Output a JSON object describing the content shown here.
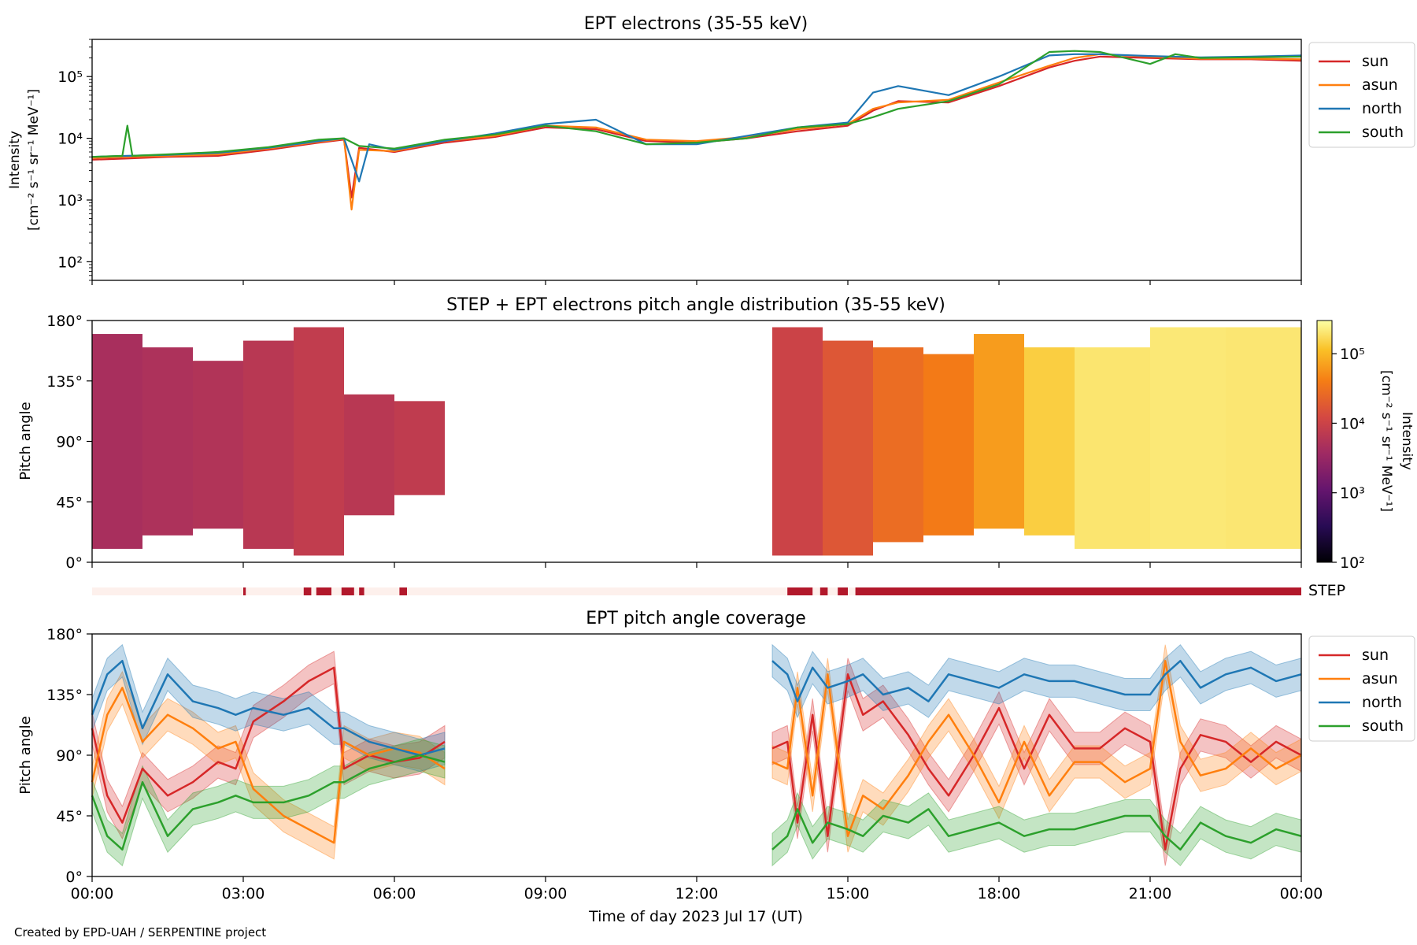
{
  "footer": "Created by EPD-UAH / SERPENTINE project",
  "xlabel": "Time of day 2023 Jul 17 (UT)",
  "time_ticks": [
    "00:00",
    "03:00",
    "06:00",
    "09:00",
    "12:00",
    "15:00",
    "18:00",
    "21:00",
    "00:00"
  ],
  "pitch_ticks": [
    "0°",
    "45°",
    "90°",
    "135°",
    "180°"
  ],
  "colors": {
    "sun": "#d62728",
    "asun": "#ff7f0e",
    "north": "#1f77b4",
    "south": "#2ca02c",
    "step": "#b2182b",
    "step_off": "#fdf0ec"
  },
  "chart_data": [
    {
      "type": "line",
      "title": "EPT electrons (35-55 keV)",
      "ylabel": [
        "Intensity",
        "[cm⁻² s⁻¹ sr⁻¹ MeV⁻¹]"
      ],
      "yscale": "log",
      "ylim": [
        50,
        400000
      ],
      "yticks": [
        {
          "value": 100,
          "label": "10²"
        },
        {
          "value": 1000,
          "label": "10³"
        },
        {
          "value": 10000,
          "label": "10⁴"
        },
        {
          "value": 100000,
          "label": "10⁵"
        }
      ],
      "xlim": [
        0,
        24
      ],
      "legend": "outside-right",
      "series": [
        {
          "name": "sun",
          "x": [
            0,
            0.7,
            1.5,
            2.5,
            3.5,
            4.5,
            5.0,
            5.15,
            5.3,
            6.0,
            7.0,
            8.0,
            9.0,
            10.0,
            11.0,
            12.0,
            13.0,
            14.0,
            15.0,
            15.5,
            16.0,
            17.0,
            18.0,
            19.0,
            19.5,
            20.0,
            21.0,
            22.0,
            23.0,
            24.0
          ],
          "y": [
            4500,
            4700,
            5000,
            5200,
            6500,
            8500,
            9500,
            1100,
            7000,
            6000,
            8500,
            10500,
            15000,
            14000,
            9000,
            8500,
            10000,
            13000,
            16000,
            28000,
            40000,
            38000,
            70000,
            140000,
            180000,
            210000,
            200000,
            190000,
            190000,
            180000
          ]
        },
        {
          "name": "asun",
          "x": [
            0,
            0.7,
            1.5,
            2.5,
            3.5,
            4.5,
            5.0,
            5.15,
            5.3,
            6.0,
            7.0,
            8.0,
            9.0,
            10.0,
            11.0,
            12.0,
            13.0,
            14.0,
            15.0,
            15.5,
            16.0,
            17.0,
            18.0,
            19.0,
            19.5,
            20.0,
            21.0,
            22.0,
            23.0,
            24.0
          ],
          "y": [
            4800,
            5000,
            5200,
            5500,
            6800,
            8800,
            9800,
            700,
            6500,
            6200,
            9000,
            11000,
            16000,
            15000,
            9500,
            9000,
            10500,
            14000,
            17000,
            30000,
            38000,
            42000,
            80000,
            150000,
            200000,
            230000,
            210000,
            195000,
            195000,
            190000
          ]
        },
        {
          "name": "north",
          "x": [
            0,
            0.7,
            1.5,
            2.5,
            3.5,
            4.5,
            5.0,
            5.3,
            5.5,
            6.0,
            7.0,
            8.0,
            9.0,
            10.0,
            11.0,
            12.0,
            13.0,
            14.0,
            15.0,
            15.5,
            16.0,
            17.0,
            18.0,
            19.0,
            19.5,
            20.0,
            21.0,
            22.0,
            23.0,
            24.0
          ],
          "y": [
            5000,
            5200,
            5400,
            5800,
            7000,
            9000,
            10000,
            2000,
            8000,
            6500,
            9000,
            12000,
            17000,
            20000,
            8000,
            8000,
            11000,
            15000,
            18000,
            55000,
            70000,
            50000,
            100000,
            220000,
            230000,
            230000,
            215000,
            205000,
            210000,
            220000
          ]
        },
        {
          "name": "south",
          "x": [
            0,
            0.6,
            0.7,
            0.8,
            1.5,
            2.5,
            3.5,
            4.5,
            5.0,
            5.3,
            6.0,
            7.0,
            8.0,
            9.0,
            10.0,
            11.0,
            12.0,
            13.0,
            14.0,
            15.0,
            15.5,
            16.0,
            17.0,
            18.0,
            19.0,
            19.5,
            20.0,
            21.0,
            21.5,
            22.0,
            23.0,
            24.0
          ],
          "y": [
            5000,
            5200,
            16000,
            5200,
            5500,
            6000,
            7200,
            9500,
            10000,
            7500,
            6800,
            9500,
            11500,
            16000,
            13000,
            8000,
            8500,
            10000,
            15000,
            17000,
            22000,
            30000,
            40000,
            75000,
            250000,
            260000,
            250000,
            160000,
            230000,
            200000,
            205000,
            210000
          ]
        }
      ]
    },
    {
      "type": "heatmap",
      "title": "STEP + EPT electrons pitch angle distribution (35-55 keV)",
      "ylabel": "Pitch angle",
      "ylim": [
        0,
        180
      ],
      "xlim": [
        0,
        24
      ],
      "colorbar": {
        "label": "Intensity",
        "units": "[cm⁻² s⁻¹ sr⁻¹ MeV⁻¹]",
        "scale": "log",
        "range": [
          100,
          300000
        ],
        "ticks": [
          {
            "value": 100,
            "label": "10²"
          },
          {
            "value": 1000,
            "label": "10³"
          },
          {
            "value": 10000,
            "label": "10⁴"
          },
          {
            "value": 100000,
            "label": "10⁵"
          }
        ],
        "colormap": "inferno"
      },
      "blocks": [
        {
          "t": [
            0.0,
            1.0
          ],
          "pa": [
            10,
            170
          ],
          "intensity": 4500
        },
        {
          "t": [
            1.0,
            2.0
          ],
          "pa": [
            20,
            160
          ],
          "intensity": 5000
        },
        {
          "t": [
            2.0,
            3.0
          ],
          "pa": [
            25,
            150
          ],
          "intensity": 5500
        },
        {
          "t": [
            3.0,
            4.0
          ],
          "pa": [
            10,
            165
          ],
          "intensity": 6500
        },
        {
          "t": [
            4.0,
            5.0
          ],
          "pa": [
            5,
            175
          ],
          "intensity": 8000
        },
        {
          "t": [
            5.0,
            6.0
          ],
          "pa": [
            35,
            125
          ],
          "intensity": 6500
        },
        {
          "t": [
            6.0,
            7.0
          ],
          "pa": [
            50,
            120
          ],
          "intensity": 7500
        },
        {
          "t": [
            13.5,
            14.5
          ],
          "pa": [
            5,
            175
          ],
          "intensity": 10000
        },
        {
          "t": [
            14.5,
            15.5
          ],
          "pa": [
            5,
            165
          ],
          "intensity": 17000
        },
        {
          "t": [
            15.5,
            16.5
          ],
          "pa": [
            15,
            160
          ],
          "intensity": 28000
        },
        {
          "t": [
            16.5,
            17.5
          ],
          "pa": [
            20,
            155
          ],
          "intensity": 38000
        },
        {
          "t": [
            17.5,
            18.5
          ],
          "pa": [
            25,
            170
          ],
          "intensity": 65000
        },
        {
          "t": [
            18.5,
            19.5
          ],
          "pa": [
            20,
            160
          ],
          "intensity": 140000
        },
        {
          "t": [
            19.5,
            21.0
          ],
          "pa": [
            10,
            160
          ],
          "intensity": 200000
        },
        {
          "t": [
            21.0,
            22.5
          ],
          "pa": [
            10,
            175
          ],
          "intensity": 210000
        },
        {
          "t": [
            22.5,
            24.0
          ],
          "pa": [
            10,
            175
          ],
          "intensity": 205000
        }
      ]
    },
    {
      "type": "bar",
      "label": "STEP",
      "xlim": [
        0,
        24
      ],
      "active_intervals": [
        [
          3.0,
          3.05
        ],
        [
          4.2,
          4.35
        ],
        [
          4.45,
          4.75
        ],
        [
          4.95,
          5.2
        ],
        [
          5.3,
          5.4
        ],
        [
          6.1,
          6.25
        ],
        [
          13.8,
          14.3
        ],
        [
          14.45,
          14.6
        ],
        [
          14.8,
          15.0
        ],
        [
          15.15,
          24.0
        ]
      ]
    },
    {
      "type": "line",
      "title": "EPT pitch angle coverage",
      "ylabel": "Pitch angle",
      "ylim": [
        0,
        180
      ],
      "xlim": [
        0,
        24
      ],
      "legend": "outside-right",
      "band_halfwidth": 12,
      "series": [
        {
          "name": "sun",
          "segments": [
            {
              "x": [
                0,
                0.3,
                0.6,
                1.0,
                1.5,
                2.0,
                2.5,
                2.85,
                3.2,
                3.8,
                4.3,
                4.8,
                5.0,
                5.5,
                6.0,
                6.5,
                7.0
              ],
              "y": [
                110,
                60,
                40,
                80,
                60,
                70,
                85,
                80,
                115,
                130,
                145,
                155,
                80,
                90,
                85,
                88,
                100
              ]
            },
            {
              "x": [
                13.5,
                13.8,
                14.0,
                14.3,
                14.6,
                15.0,
                15.3,
                15.7,
                16.2,
                16.6,
                17.0,
                17.5,
                18.0,
                18.5,
                19.0,
                19.5,
                20.0,
                20.5,
                21.0,
                21.3,
                21.6,
                22.0,
                22.5,
                23.0,
                23.5,
                24.0
              ],
              "y": [
                95,
                100,
                40,
                120,
                30,
                150,
                120,
                130,
                105,
                80,
                60,
                90,
                125,
                80,
                120,
                95,
                95,
                110,
                100,
                20,
                80,
                105,
                100,
                85,
                100,
                90
              ]
            }
          ]
        },
        {
          "name": "asun",
          "segments": [
            {
              "x": [
                0,
                0.3,
                0.6,
                1.0,
                1.5,
                2.0,
                2.5,
                2.85,
                3.2,
                3.8,
                4.3,
                4.8,
                5.0,
                5.5,
                6.0,
                6.5,
                7.0
              ],
              "y": [
                70,
                120,
                140,
                100,
                120,
                110,
                95,
                100,
                65,
                45,
                35,
                25,
                100,
                90,
                95,
                92,
                80
              ]
            },
            {
              "x": [
                13.5,
                13.8,
                14.0,
                14.3,
                14.6,
                15.0,
                15.3,
                15.7,
                16.2,
                16.6,
                17.0,
                17.5,
                18.0,
                18.5,
                19.0,
                19.5,
                20.0,
                20.5,
                21.0,
                21.3,
                21.6,
                22.0,
                22.5,
                23.0,
                23.5,
                24.0
              ],
              "y": [
                85,
                80,
                140,
                60,
                150,
                30,
                60,
                50,
                75,
                100,
                120,
                90,
                55,
                100,
                60,
                85,
                85,
                70,
                80,
                160,
                100,
                75,
                80,
                95,
                80,
                90
              ]
            }
          ]
        },
        {
          "name": "north",
          "segments": [
            {
              "x": [
                0,
                0.3,
                0.6,
                1.0,
                1.5,
                2.0,
                2.5,
                2.85,
                3.2,
                3.8,
                4.3,
                4.8,
                5.0,
                5.5,
                6.0,
                6.5,
                7.0
              ],
              "y": [
                120,
                150,
                160,
                110,
                150,
                130,
                125,
                120,
                125,
                120,
                125,
                110,
                110,
                100,
                95,
                90,
                95
              ]
            },
            {
              "x": [
                13.5,
                13.8,
                14.0,
                14.3,
                14.6,
                15.0,
                15.3,
                15.7,
                16.2,
                16.6,
                17.0,
                17.5,
                18.0,
                18.5,
                19.0,
                19.5,
                20.0,
                20.5,
                21.0,
                21.3,
                21.6,
                22.0,
                22.5,
                23.0,
                23.5,
                24.0
              ],
              "y": [
                160,
                150,
                130,
                155,
                140,
                145,
                150,
                135,
                140,
                130,
                150,
                145,
                140,
                150,
                145,
                145,
                140,
                135,
                135,
                150,
                160,
                140,
                150,
                155,
                145,
                150
              ]
            }
          ]
        },
        {
          "name": "south",
          "segments": [
            {
              "x": [
                0,
                0.3,
                0.6,
                1.0,
                1.5,
                2.0,
                2.5,
                2.85,
                3.2,
                3.8,
                4.3,
                4.8,
                5.0,
                5.5,
                6.0,
                6.5,
                7.0
              ],
              "y": [
                60,
                30,
                20,
                70,
                30,
                50,
                55,
                60,
                55,
                55,
                60,
                70,
                70,
                80,
                85,
                90,
                85
              ]
            },
            {
              "x": [
                13.5,
                13.8,
                14.0,
                14.3,
                14.6,
                15.0,
                15.3,
                15.7,
                16.2,
                16.6,
                17.0,
                17.5,
                18.0,
                18.5,
                19.0,
                19.5,
                20.0,
                20.5,
                21.0,
                21.3,
                21.6,
                22.0,
                22.5,
                23.0,
                23.5,
                24.0
              ],
              "y": [
                20,
                30,
                50,
                25,
                40,
                35,
                30,
                45,
                40,
                50,
                30,
                35,
                40,
                30,
                35,
                35,
                40,
                45,
                45,
                30,
                20,
                40,
                30,
                25,
                35,
                30
              ]
            }
          ]
        }
      ]
    }
  ]
}
